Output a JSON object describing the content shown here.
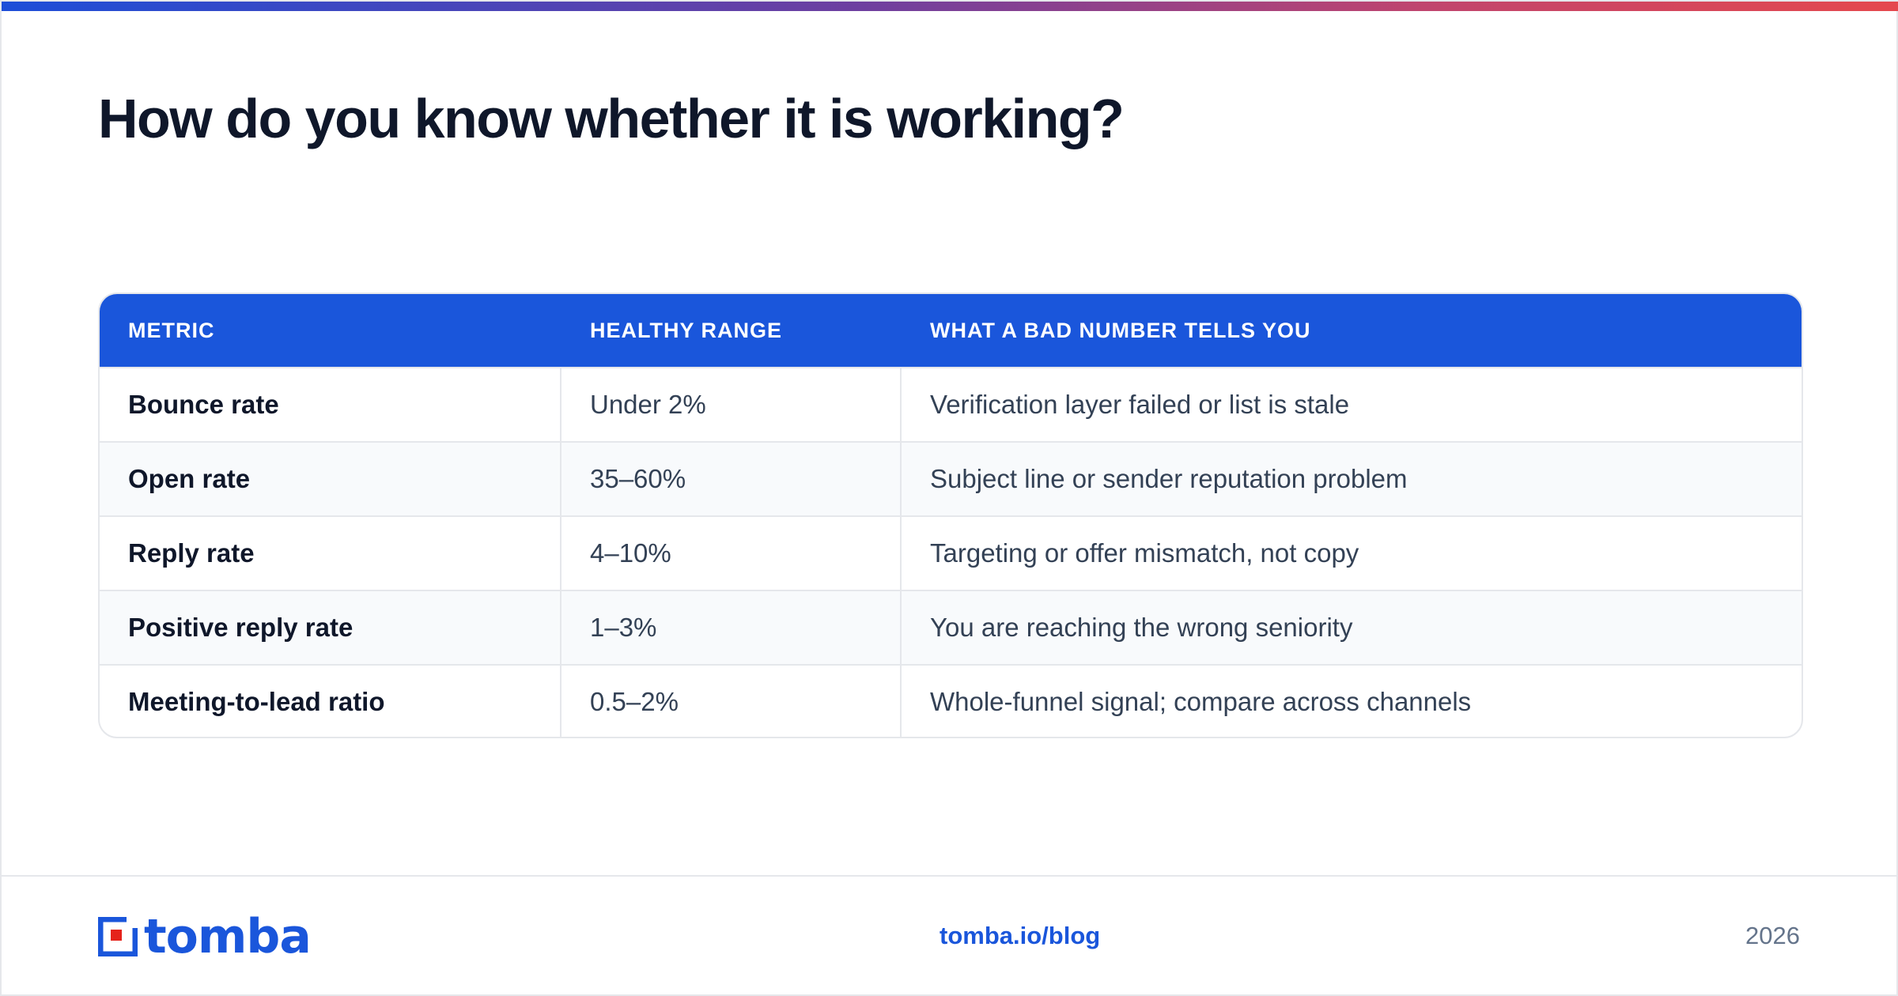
{
  "title": "How do you know whether it is working?",
  "table": {
    "headers": [
      "METRIC",
      "HEALTHY RANGE",
      "WHAT A BAD NUMBER TELLS YOU"
    ],
    "rows": [
      {
        "metric": "Bounce rate",
        "range": "Under 2%",
        "meaning": "Verification layer failed or list is stale"
      },
      {
        "metric": "Open rate",
        "range": "35–60%",
        "meaning": "Subject line or sender reputation problem"
      },
      {
        "metric": "Reply rate",
        "range": "4–10%",
        "meaning": "Targeting or offer mismatch, not copy"
      },
      {
        "metric": "Positive reply rate",
        "range": "1–3%",
        "meaning": "You are reaching the wrong seniority"
      },
      {
        "metric": "Meeting-to-lead ratio",
        "range": "0.5–2%",
        "meaning": "Whole-funnel signal; compare across channels"
      }
    ]
  },
  "footer": {
    "logo_text": "tomba",
    "link": "tomba.io/blog",
    "year": "2026"
  },
  "colors": {
    "accent": "#1a56db",
    "accent_red": "#e5231b",
    "title": "#0f172a"
  }
}
